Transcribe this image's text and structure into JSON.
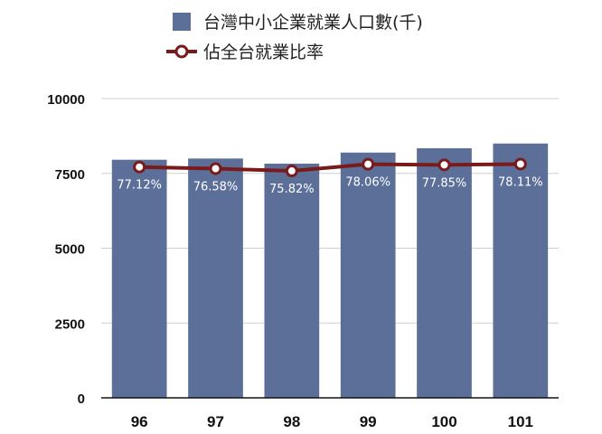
{
  "colors": {
    "bar": "#5b6f99",
    "line": "#7a1b1b",
    "marker_fill": "#ffffff",
    "grid": "#d0d0d0",
    "label": "#ffffff"
  },
  "chart_data": {
    "type": "bar",
    "categories": [
      "96",
      "97",
      "98",
      "99",
      "100",
      "101"
    ],
    "series": [
      {
        "name": "台灣中小企業就業人口數(千)",
        "type": "bar",
        "values": [
          7955,
          7996,
          7824,
          8195,
          8339,
          8497
        ]
      },
      {
        "name": "佔全台就業比率",
        "type": "line",
        "values": [
          77.12,
          76.58,
          75.82,
          78.06,
          77.85,
          78.11
        ],
        "labels": [
          "77.12%",
          "76.58%",
          "75.82%",
          "78.06%",
          "77.85%",
          "78.11%"
        ]
      }
    ],
    "y_ticks": [
      "10000",
      "7500",
      "5000",
      "2500",
      "0"
    ],
    "ylim": [
      0,
      10000
    ],
    "grid": true,
    "legend_position": "top"
  }
}
